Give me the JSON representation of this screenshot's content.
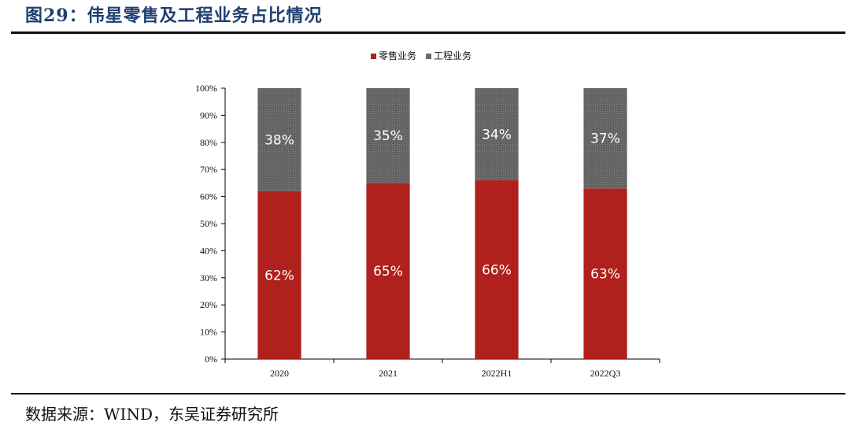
{
  "header": {
    "title": "图29：伟星零售及工程业务占比情况"
  },
  "footer": {
    "source": "数据来源：WIND，东吴证券研究所"
  },
  "chart_data": {
    "type": "bar",
    "stacked": true,
    "categories": [
      "2020",
      "2021",
      "2022H1",
      "2022Q3"
    ],
    "series": [
      {
        "name": "零售业务",
        "values": [
          62,
          65,
          66,
          63
        ],
        "labels": [
          "62%",
          "65%",
          "66%",
          "63%"
        ],
        "color": "#b0201c"
      },
      {
        "name": "工程业务",
        "values": [
          38,
          35,
          34,
          37
        ],
        "labels": [
          "38%",
          "35%",
          "34%",
          "37%"
        ],
        "color": "#6b6b6b"
      }
    ],
    "ylim": [
      0,
      100
    ],
    "yticks": [
      "0%",
      "10%",
      "20%",
      "30%",
      "40%",
      "50%",
      "60%",
      "70%",
      "80%",
      "90%",
      "100%"
    ],
    "legend": "top-center",
    "grid": false
  }
}
